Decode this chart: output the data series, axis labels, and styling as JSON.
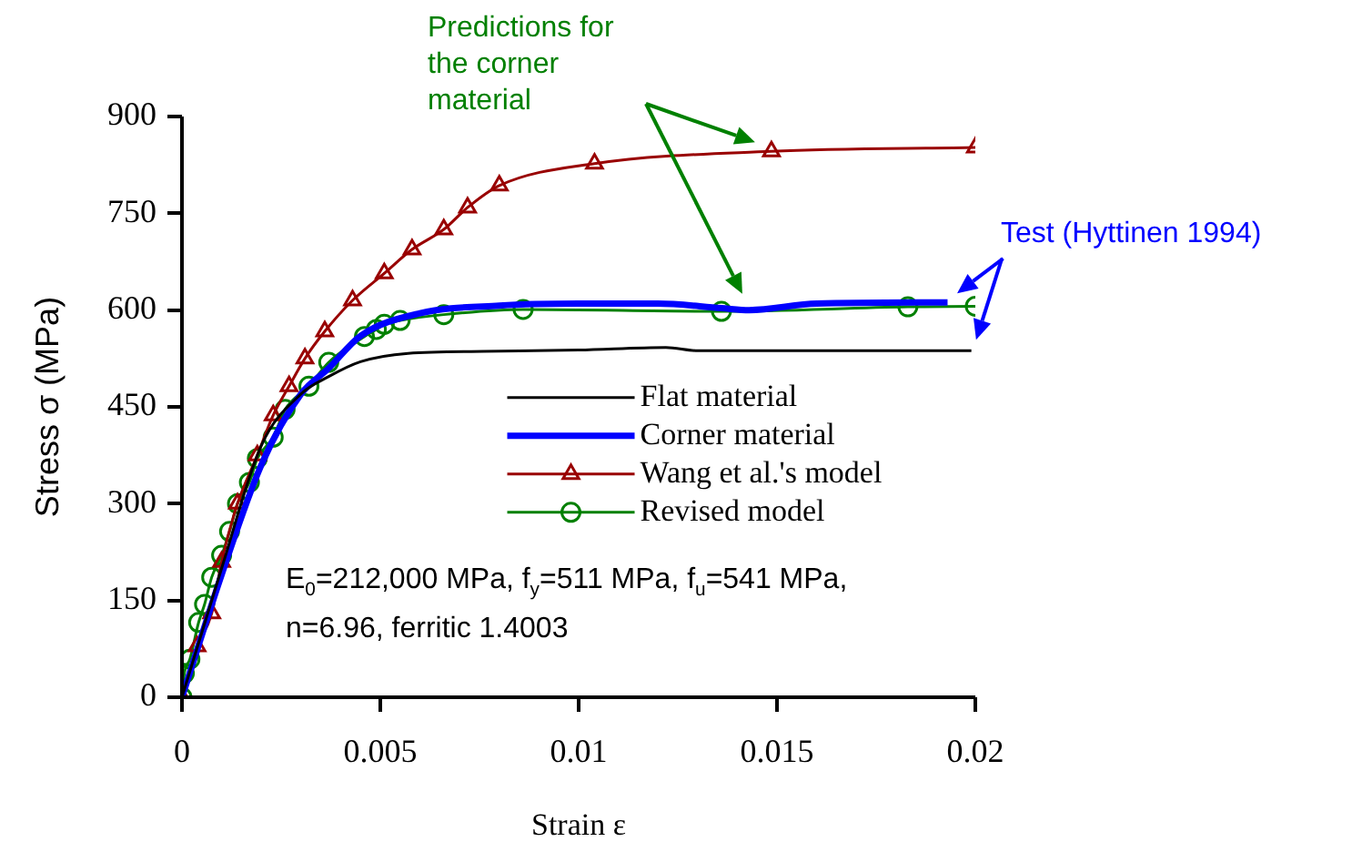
{
  "chart_data": {
    "type": "line",
    "xlabel": "Strain ε",
    "ylabel": "Stress σ (MPa)",
    "xlim": [
      0,
      0.02
    ],
    "xticks": [
      0,
      0.005,
      0.01,
      0.015,
      0.02
    ],
    "ylim": [
      0,
      900
    ],
    "yticks": [
      0,
      150,
      300,
      450,
      600,
      750,
      900
    ],
    "grid": false,
    "legend": "right",
    "series": [
      {
        "name": "Flat material",
        "color": "#000000",
        "marker": "none",
        "x": [
          0,
          0.001,
          0.002,
          0.003,
          0.0037,
          0.0045,
          0.0057,
          0.0076,
          0.01,
          0.0122,
          0.013,
          0.016,
          0.0199
        ],
        "values": [
          0,
          200,
          390,
          470,
          497,
          520,
          533,
          536,
          538,
          542,
          537,
          537,
          537
        ]
      },
      {
        "name": "Corner material",
        "color": "#0000ff",
        "marker": "none",
        "x": [
          0,
          0.001,
          0.002,
          0.003,
          0.0037,
          0.0045,
          0.006,
          0.008,
          0.01,
          0.012,
          0.0136,
          0.0143,
          0.016,
          0.0193
        ],
        "values": [
          0,
          190,
          360,
          470,
          510,
          560,
          595,
          607,
          610,
          610,
          603,
          600,
          610,
          612
        ]
      },
      {
        "name": "Wang et al.'s model",
        "color": "#990000",
        "marker": "triangle",
        "x": [
          0,
          0.00038,
          0.00075,
          0.001,
          0.0014,
          0.0019,
          0.0023,
          0.0027,
          0.0031,
          0.0036,
          0.0043,
          0.0051,
          0.0058,
          0.0066,
          0.0072,
          0.008,
          0.0104,
          0.01486,
          0.02
        ],
        "values": [
          0,
          79,
          130,
          210,
          300,
          375,
          437,
          482,
          525,
          567,
          615,
          657,
          694,
          725,
          759,
          793,
          827,
          846,
          852
        ]
      },
      {
        "name": "Revised model",
        "color": "#008000",
        "marker": "circle",
        "x": [
          0,
          6e-05,
          0.0002,
          0.00042,
          0.00057,
          0.00075,
          0.001,
          0.0012,
          0.0014,
          0.0017,
          0.0019,
          0.0023,
          0.0026,
          0.0032,
          0.0037,
          0.0046,
          0.0049,
          0.0051,
          0.0055,
          0.0066,
          0.0086,
          0.0136,
          0.0183,
          0.02
        ],
        "values": [
          0,
          37,
          59,
          116,
          144,
          186,
          220,
          257,
          300,
          333,
          370,
          403,
          446,
          482,
          519,
          559,
          570,
          578,
          584,
          593,
          601,
          598,
          605,
          606
        ]
      }
    ],
    "annotations": [
      "Predictions for the corner material",
      "Test (Hyttinen 1994)",
      "E$_{0}$=212,000 MPa, f$_{y}$=511 MPa, f$_{u}$=541 MPa,",
      "n=6.96, ferritic 1.4003"
    ]
  }
}
